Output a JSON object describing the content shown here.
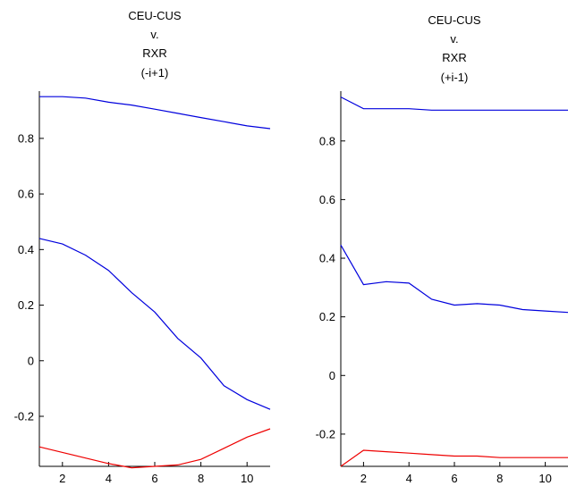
{
  "chart_data": [
    {
      "type": "line",
      "title_lines": [
        "CEU-CUS",
        "v.",
        "RXR",
        "(-i+1)"
      ],
      "xlabel": "",
      "ylabel": "",
      "xlim": [
        1,
        11
      ],
      "ylim": [
        -0.38,
        0.97
      ],
      "xticks": [
        2,
        4,
        6,
        8,
        10
      ],
      "yticks": [
        -0.2,
        0,
        0.2,
        0.4,
        0.6,
        0.8
      ],
      "ytick_labels": [
        "-0.2",
        "0",
        "0.2",
        "0.4",
        "0.6",
        "0.8"
      ],
      "x": [
        1,
        2,
        3,
        4,
        5,
        6,
        7,
        8,
        9,
        10,
        11
      ],
      "series": [
        {
          "color": "#0000dd",
          "values": [
            0.95,
            0.95,
            0.945,
            0.93,
            0.92,
            0.905,
            0.89,
            0.875,
            0.86,
            0.845,
            0.835
          ]
        },
        {
          "color": "#0000dd",
          "values": [
            0.44,
            0.42,
            0.38,
            0.325,
            0.245,
            0.175,
            0.08,
            0.01,
            -0.09,
            -0.14,
            -0.175
          ]
        },
        {
          "color": "#ee0000",
          "values": [
            -0.31,
            -0.33,
            -0.35,
            -0.37,
            -0.385,
            -0.38,
            -0.375,
            -0.355,
            -0.315,
            -0.275,
            -0.245
          ]
        }
      ]
    },
    {
      "type": "line",
      "title_lines": [
        "CEU-CUS",
        "v.",
        "RXR",
        "(+i-1)"
      ],
      "xlabel": "",
      "ylabel": "",
      "xlim": [
        1,
        11
      ],
      "ylim": [
        -0.31,
        0.97
      ],
      "xticks": [
        2,
        4,
        6,
        8,
        10
      ],
      "yticks": [
        -0.2,
        0,
        0.2,
        0.4,
        0.6,
        0.8
      ],
      "ytick_labels": [
        "-0.2",
        "0",
        "0.2",
        "0.4",
        "0.6",
        "0.8"
      ],
      "x": [
        1,
        2,
        3,
        4,
        5,
        6,
        7,
        8,
        9,
        10,
        11
      ],
      "series": [
        {
          "color": "#0000dd",
          "values": [
            0.95,
            0.91,
            0.91,
            0.91,
            0.905,
            0.905,
            0.905,
            0.905,
            0.905,
            0.905,
            0.905
          ]
        },
        {
          "color": "#0000dd",
          "values": [
            0.445,
            0.31,
            0.32,
            0.315,
            0.26,
            0.24,
            0.245,
            0.24,
            0.225,
            0.22,
            0.215
          ]
        },
        {
          "color": "#ee0000",
          "values": [
            -0.31,
            -0.255,
            -0.26,
            -0.265,
            -0.27,
            -0.275,
            -0.275,
            -0.28,
            -0.28,
            -0.28,
            -0.28
          ]
        }
      ]
    }
  ]
}
